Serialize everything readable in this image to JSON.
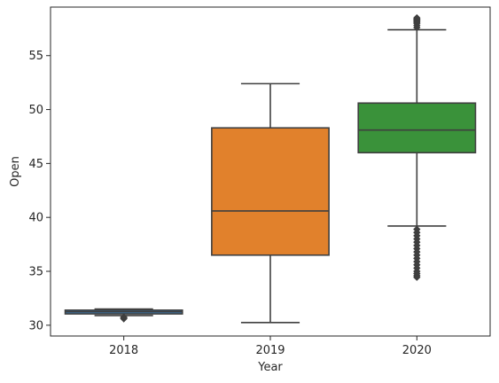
{
  "chart_data": {
    "type": "boxplot",
    "title": "",
    "xlabel": "Year",
    "ylabel": "Open",
    "categories": [
      "2018",
      "2019",
      "2020"
    ],
    "ylim": [
      29.0,
      59.5
    ],
    "yticks": [
      30,
      35,
      40,
      45,
      50,
      55
    ],
    "ytick_labels": [
      "30",
      "35",
      "40",
      "45",
      "50",
      "55"
    ],
    "grid": false,
    "legend": "none",
    "boxes": [
      {
        "category": "2018",
        "whisker_low": 30.9,
        "q1": 31.05,
        "median": 31.25,
        "q3": 31.4,
        "whisker_high": 31.5,
        "color": "#3a75a8",
        "outliers": [
          30.6,
          30.65,
          30.7,
          30.75
        ]
      },
      {
        "category": "2019",
        "whisker_low": 30.25,
        "q1": 36.5,
        "median": 40.6,
        "q3": 48.3,
        "whisker_high": 52.4,
        "color": "#e1812c",
        "outliers": []
      },
      {
        "category": "2020",
        "whisker_low": 39.2,
        "q1": 46.0,
        "median": 48.1,
        "q3": 50.6,
        "whisker_high": 57.4,
        "color": "#3a923a",
        "outliers": [
          57.6,
          57.8,
          58.0,
          58.1,
          58.2,
          58.3,
          58.4,
          58.5,
          38.9,
          38.6,
          38.3,
          38.0,
          37.7,
          37.4,
          37.1,
          36.8,
          36.5,
          36.2,
          35.9,
          35.6,
          35.3,
          35.0,
          34.8,
          34.6,
          34.45
        ]
      }
    ]
  },
  "style": {
    "line_color": "#3f3f3f",
    "axis_color": "#262626"
  }
}
